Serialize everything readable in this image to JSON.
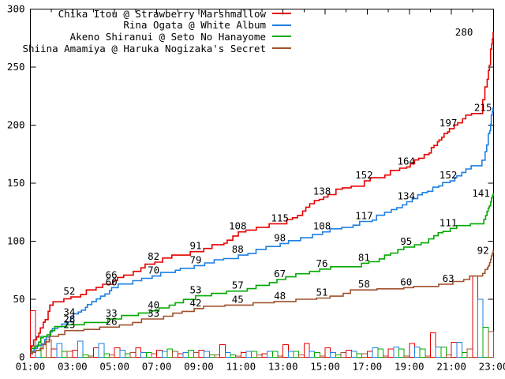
{
  "chart_data": {
    "type": "line",
    "title": "",
    "xlabel": "",
    "ylabel": "",
    "x_range_hours": [
      1,
      23
    ],
    "y_range": [
      0,
      300
    ],
    "y_ticks": [
      0,
      50,
      100,
      150,
      200,
      250,
      300
    ],
    "x_tick_labels": [
      "01:00",
      "03:00",
      "05:00",
      "07:00",
      "09:00",
      "11:00",
      "13:00",
      "15:00",
      "17:00",
      "19:00",
      "21:00",
      "23:00"
    ],
    "grid": "off",
    "legend_position": "top-center-inside",
    "bars_meaning": "hourly increments of each series drawn as hollow outlined bars along the baseline",
    "series": [
      {
        "name": "Chika Itou @ Strawberry Marshmallow",
        "color": "#e60000",
        "hourly_cumulative": [
          5,
          45,
          52,
          58,
          66,
          74,
          82,
          88,
          91,
          97,
          108,
          112,
          115,
          126,
          138,
          146,
          152,
          157,
          164,
          176,
          197,
          210,
          280
        ],
        "point_labels": {
          "hours": [
            3,
            5,
            7,
            9,
            11,
            13,
            15,
            17,
            19,
            21
          ],
          "values": [
            52,
            66,
            82,
            91,
            108,
            115,
            138,
            152,
            164,
            197
          ]
        },
        "end_label": {
          "value": 280,
          "at_hour": 21.6
        }
      },
      {
        "name": "Rina Ogata @ White Album",
        "color": "#1e7fe0",
        "hourly_cumulative": [
          4,
          22,
          34,
          48,
          60,
          66,
          70,
          75,
          79,
          84,
          88,
          93,
          98,
          103,
          108,
          112,
          117,
          125,
          134,
          143,
          152,
          165,
          215
        ],
        "point_labels": {
          "hours": [
            3,
            5,
            7,
            9,
            11,
            13,
            15,
            17,
            19,
            21
          ],
          "values": [
            34,
            60,
            70,
            79,
            88,
            98,
            108,
            117,
            134,
            152
          ]
        },
        "end_label": {
          "value": 215,
          "at_hour": 22.5
        }
      },
      {
        "name": "Akeno Shiranui @ Seto No Hanayome",
        "color": "#00a800",
        "hourly_cumulative": [
          5,
          23,
          28,
          30,
          33,
          36,
          40,
          47,
          53,
          55,
          57,
          62,
          67,
          72,
          76,
          78,
          81,
          88,
          95,
          102,
          111,
          115,
          141
        ],
        "point_labels": {
          "hours": [
            3,
            5,
            7,
            9,
            11,
            13,
            15,
            17,
            19,
            21
          ],
          "values": [
            28,
            33,
            40,
            53,
            57,
            67,
            76,
            81,
            95,
            111
          ]
        },
        "end_label": {
          "value": 141,
          "at_hour": 22.4
        }
      },
      {
        "name": "Shiina Amamiya @ Haruka Nogizaka's Secret",
        "color": "#a0522d",
        "hourly_cumulative": [
          3,
          18,
          23,
          24,
          26,
          30,
          33,
          38,
          42,
          44,
          45,
          47,
          48,
          50,
          51,
          55,
          58,
          59,
          60,
          61,
          63,
          70,
          92
        ],
        "point_labels": {
          "hours": [
            3,
            5,
            7,
            9,
            11,
            13,
            15,
            17,
            19,
            21
          ],
          "values": [
            23,
            26,
            33,
            42,
            45,
            48,
            51,
            58,
            60,
            63
          ]
        },
        "end_label": {
          "value": 92,
          "at_hour": 22.5
        }
      }
    ]
  }
}
